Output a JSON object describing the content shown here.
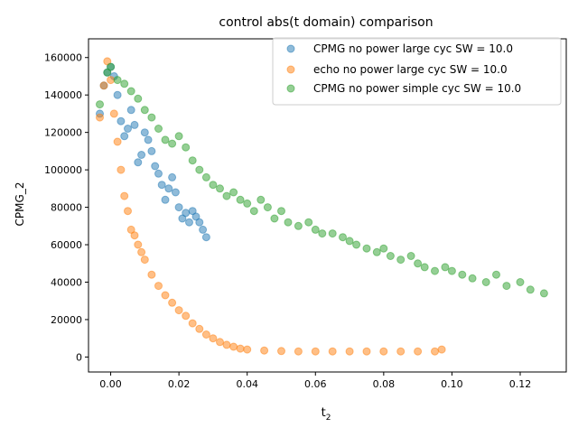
{
  "chart_data": {
    "type": "scatter",
    "title": "control abs(t domain) comparison",
    "xlabel": "t",
    "xlabel_subscript": "2",
    "ylabel": "CPMG_2",
    "xlim": [
      -0.0065,
      0.1335
    ],
    "ylim": [
      -8000,
      170000
    ],
    "xticks": [
      0.0,
      0.02,
      0.04,
      0.06,
      0.08,
      0.1,
      0.12
    ],
    "xtick_labels": [
      "0.00",
      "0.02",
      "0.04",
      "0.06",
      "0.08",
      "0.10",
      "0.12"
    ],
    "yticks": [
      0,
      20000,
      40000,
      60000,
      80000,
      100000,
      120000,
      140000,
      160000
    ],
    "ytick_labels": [
      "0",
      "20000",
      "40000",
      "60000",
      "80000",
      "100000",
      "120000",
      "140000",
      "160000"
    ],
    "legend_position": "top-right",
    "grid": false,
    "series": [
      {
        "name": "CPMG no power large cyc SW = 10.0",
        "color": "#1f77b4",
        "x": [
          -0.0032,
          -0.002,
          -0.001,
          0.0,
          0.001,
          0.002,
          0.003,
          0.004,
          0.005,
          0.006,
          0.007,
          0.008,
          0.009,
          0.01,
          0.011,
          0.012,
          0.013,
          0.014,
          0.015,
          0.016,
          0.017,
          0.018,
          0.019,
          0.02,
          0.021,
          0.022,
          0.023,
          0.024,
          0.025,
          0.026,
          0.027,
          0.028
        ],
        "y": [
          130000,
          145000,
          152000,
          155000,
          150000,
          140000,
          126000,
          118000,
          122000,
          132000,
          124000,
          104000,
          108000,
          120000,
          116000,
          110000,
          102000,
          98000,
          92000,
          84000,
          90000,
          96000,
          88000,
          80000,
          74000,
          77000,
          72000,
          78000,
          75000,
          72000,
          68000,
          64000
        ]
      },
      {
        "name": "echo no power large cyc SW = 10.0",
        "color": "#ff7f0e",
        "x": [
          -0.0032,
          -0.002,
          -0.001,
          0.0,
          0.001,
          0.002,
          0.003,
          0.004,
          0.005,
          0.006,
          0.007,
          0.008,
          0.009,
          0.01,
          0.012,
          0.014,
          0.016,
          0.018,
          0.02,
          0.022,
          0.024,
          0.026,
          0.028,
          0.03,
          0.032,
          0.034,
          0.036,
          0.038,
          0.04,
          0.045,
          0.05,
          0.055,
          0.06,
          0.065,
          0.07,
          0.075,
          0.08,
          0.085,
          0.09,
          0.095,
          0.097
        ],
        "y": [
          128000,
          145000,
          158000,
          148000,
          130000,
          115000,
          100000,
          86000,
          78000,
          68000,
          65000,
          60000,
          56000,
          52000,
          44000,
          38000,
          33000,
          29000,
          25000,
          22000,
          18000,
          15000,
          12000,
          10000,
          8000,
          6500,
          5500,
          4500,
          4000,
          3500,
          3200,
          3000,
          3000,
          3000,
          3000,
          3000,
          3000,
          3000,
          3000,
          3000,
          4000
        ]
      },
      {
        "name": "CPMG no power simple cyc SW = 10.0",
        "color": "#2ca02c",
        "x": [
          -0.0032,
          -0.001,
          0.0,
          0.002,
          0.004,
          0.006,
          0.008,
          0.01,
          0.012,
          0.014,
          0.016,
          0.018,
          0.02,
          0.022,
          0.024,
          0.026,
          0.028,
          0.03,
          0.032,
          0.034,
          0.036,
          0.038,
          0.04,
          0.042,
          0.044,
          0.046,
          0.048,
          0.05,
          0.052,
          0.055,
          0.058,
          0.06,
          0.062,
          0.065,
          0.068,
          0.07,
          0.072,
          0.075,
          0.078,
          0.08,
          0.082,
          0.085,
          0.088,
          0.09,
          0.092,
          0.095,
          0.098,
          0.1,
          0.103,
          0.106,
          0.11,
          0.113,
          0.116,
          0.12,
          0.123,
          0.127
        ],
        "y": [
          135000,
          152000,
          155000,
          148000,
          146000,
          142000,
          138000,
          132000,
          128000,
          122000,
          116000,
          114000,
          118000,
          112000,
          105000,
          100000,
          96000,
          92000,
          90000,
          86000,
          88000,
          84000,
          82000,
          78000,
          84000,
          80000,
          74000,
          78000,
          72000,
          70000,
          72000,
          68000,
          66000,
          66000,
          64000,
          62000,
          60000,
          58000,
          56000,
          58000,
          54000,
          52000,
          54000,
          50000,
          48000,
          46000,
          48000,
          46000,
          44000,
          42000,
          40000,
          44000,
          38000,
          40000,
          36000,
          34000
        ]
      }
    ]
  }
}
